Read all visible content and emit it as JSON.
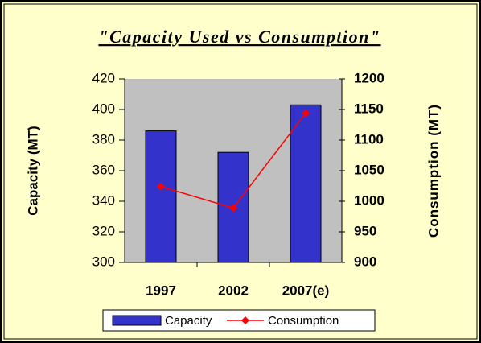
{
  "chart_data": {
    "type": "bar_line",
    "title": "\"Capacity Used vs Consumption\"",
    "categories": [
      "1997",
      "2002",
      "2007(e)"
    ],
    "series": [
      {
        "name": "Capacity",
        "color": "#3333cc",
        "values": [
          386,
          372,
          403
        ]
      },
      {
        "name": "Consumption",
        "color": "#ff0000",
        "axis": "y2",
        "values": [
          1024,
          989,
          1144
        ]
      }
    ],
    "ylabel": "Capacity (MT)",
    "y2label": "Consumption (MT)",
    "ylim": [
      300,
      420
    ],
    "yticks": [
      300,
      320,
      340,
      360,
      380,
      400,
      420
    ],
    "y2lim": [
      900,
      1200
    ],
    "y2ticks": [
      900,
      950,
      1000,
      1050,
      1100,
      1150,
      1200
    ],
    "legend": "bottom"
  }
}
